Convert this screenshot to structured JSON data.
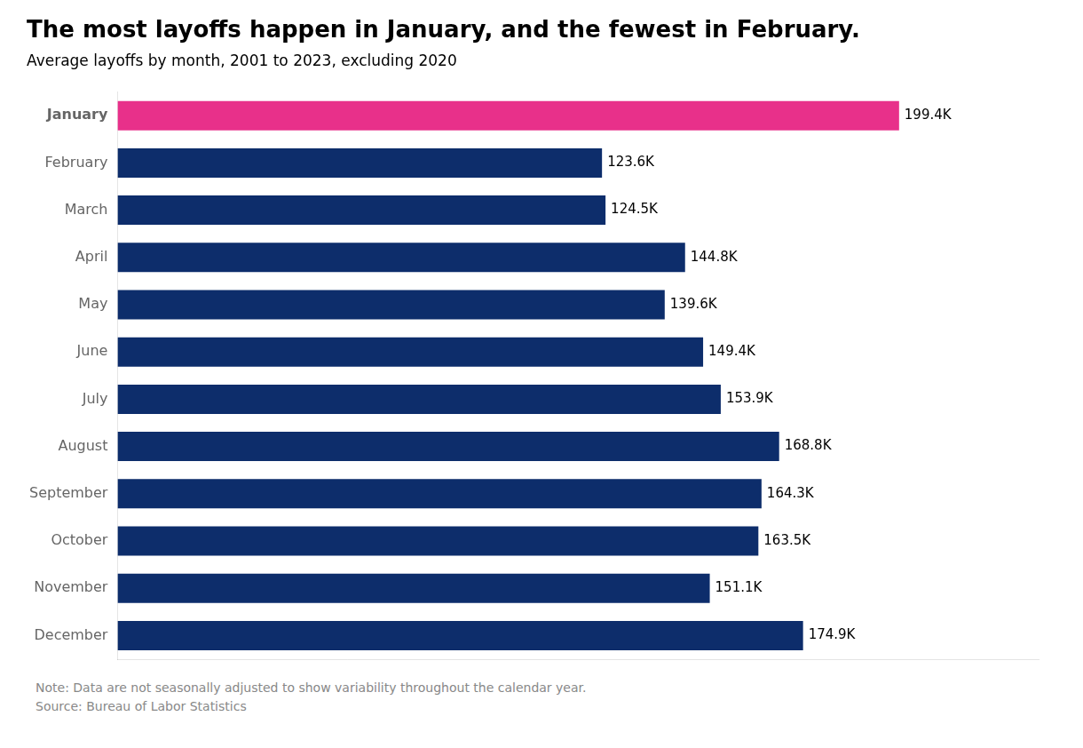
{
  "chart_data": {
    "type": "bar",
    "orientation": "horizontal",
    "title": "The most layoffs happen in January, and the fewest in February.",
    "subtitle": "Average layoffs by month, 2001 to 2023, excluding 2020",
    "categories": [
      "January",
      "February",
      "March",
      "April",
      "May",
      "June",
      "July",
      "August",
      "September",
      "October",
      "November",
      "December"
    ],
    "values": [
      199.4,
      123.6,
      124.5,
      144.8,
      139.6,
      149.4,
      153.9,
      168.8,
      164.3,
      163.5,
      151.1,
      174.9
    ],
    "value_labels": [
      "199.4K",
      "123.6K",
      "124.5K",
      "144.8K",
      "139.6K",
      "149.4K",
      "153.9K",
      "168.8K",
      "164.3K",
      "163.5K",
      "151.1K",
      "174.9K"
    ],
    "colors": [
      "#E8308A",
      "#0D2D6B",
      "#0D2D6B",
      "#0D2D6B",
      "#0D2D6B",
      "#0D2D6B",
      "#0D2D6B",
      "#0D2D6B",
      "#0D2D6B",
      "#0D2D6B",
      "#0D2D6B",
      "#0D2D6B"
    ],
    "xlim": [
      0,
      235
    ],
    "grid": false,
    "data_labels": true,
    "tick_labels": "y",
    "annotations": [
      "Note: Data are not seasonally adjusted to show variability throughout the calendar year.",
      "Source: Bureau of Labor Statistics"
    ]
  }
}
